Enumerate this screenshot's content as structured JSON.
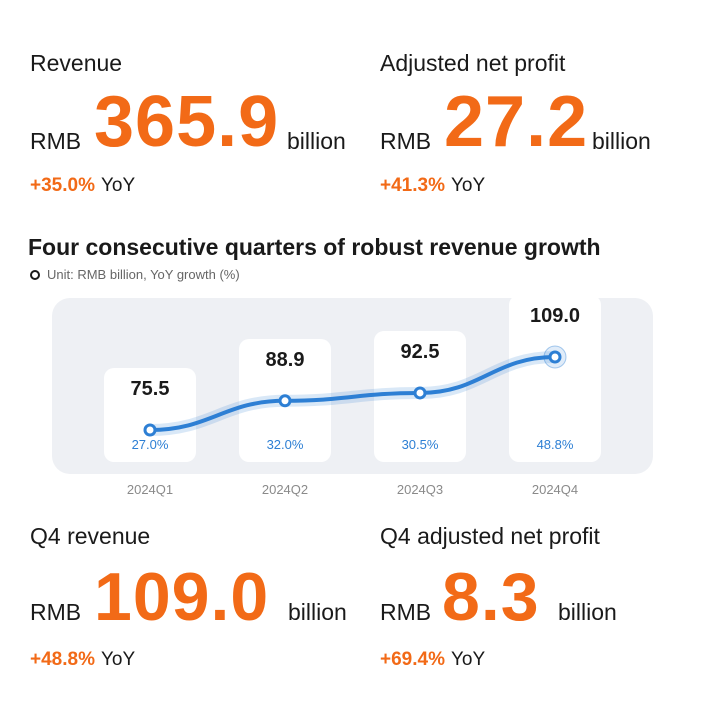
{
  "kpis": {
    "revenue": {
      "title": "Revenue",
      "currency": "RMB",
      "value": "365.9",
      "unit": "billion",
      "yoy_pct": "+35.0%",
      "yoy_label": "YoY"
    },
    "adj_profit": {
      "title": "Adjusted net profit",
      "currency": "RMB",
      "value": "27.2",
      "unit": "billion",
      "yoy_pct": "+41.3%",
      "yoy_label": "YoY"
    },
    "q4_revenue": {
      "title": "Q4 revenue",
      "currency": "RMB",
      "value": "109.0",
      "unit": "billion",
      "yoy_pct": "+48.8%",
      "yoy_label": "YoY"
    },
    "q4_profit": {
      "title": "Q4 adjusted net profit",
      "currency": "RMB",
      "value": "8.3",
      "unit": "billion",
      "yoy_pct": "+69.4%",
      "yoy_label": "YoY"
    }
  },
  "colors": {
    "accent": "#f26a17",
    "line": "#2d7fd4",
    "panel": "#eef0f4"
  },
  "chart_data": {
    "type": "line",
    "title": "Four consecutive quarters of robust revenue growth",
    "legend": "Unit: RMB billion, YoY growth (%)",
    "categories": [
      "2024Q1",
      "2024Q2",
      "2024Q3",
      "2024Q4"
    ],
    "values": [
      75.5,
      88.9,
      92.5,
      109.0
    ],
    "value_labels": [
      "75.5",
      "88.9",
      "92.5",
      "109.0"
    ],
    "yoy_growth": [
      "27.0%",
      "32.0%",
      "30.5%",
      "48.8%"
    ],
    "grid": false
  }
}
